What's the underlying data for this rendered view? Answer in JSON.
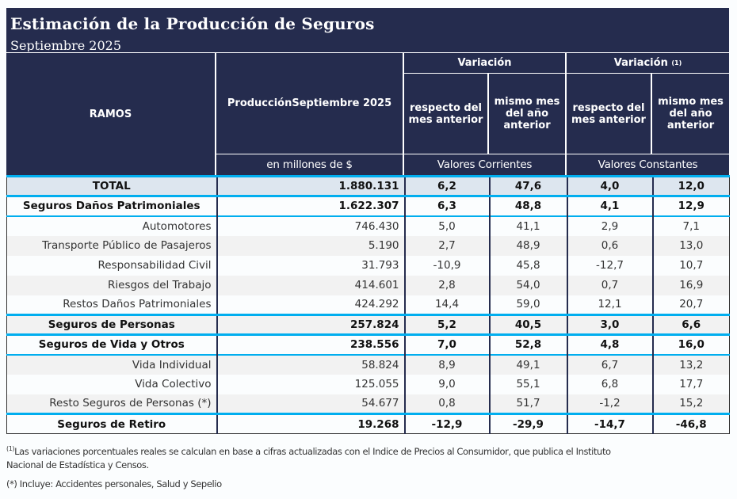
{
  "title": "Estimación de la Producción de Seguros",
  "subtitle": "Septiembre 2025",
  "header": {
    "ramos": "RAMOS",
    "produccion": "ProducciónSeptiembre 2025",
    "produccion_units": "en millones de $",
    "variacion": "Variación",
    "variacion_real": "Variación",
    "variacion_real_note": "(1)",
    "respecto": "respecto del mes anterior",
    "mismo_mes": "mismo mes del año anterior",
    "valores_corrientes": "Valores Corrientes",
    "valores_constantes": "Valores Constantes"
  },
  "rows": [
    {
      "name": "TOTAL",
      "prod": "1.880.131",
      "v1": "6,2",
      "v2": "47,6",
      "v3": "4,0",
      "v4": "12,0"
    },
    {
      "name": "Seguros Daños Patrimoniales",
      "prod": "1.622.307",
      "v1": "6,3",
      "v2": "48,8",
      "v3": "4,1",
      "v4": "12,9"
    },
    {
      "name": "Automotores",
      "prod": "746.430",
      "v1": "5,0",
      "v2": "41,1",
      "v3": "2,9",
      "v4": "7,1"
    },
    {
      "name": "Transporte Público de Pasajeros",
      "prod": "5.190",
      "v1": "2,7",
      "v2": "48,9",
      "v3": "0,6",
      "v4": "13,0"
    },
    {
      "name": "Responsabilidad Civil",
      "prod": "31.793",
      "v1": "-10,9",
      "v2": "45,8",
      "v3": "-12,7",
      "v4": "10,7"
    },
    {
      "name": "Riesgos del Trabajo",
      "prod": "414.601",
      "v1": "2,8",
      "v2": "54,0",
      "v3": "0,7",
      "v4": "16,9"
    },
    {
      "name": "Restos Daños Patrimoniales",
      "prod": "424.292",
      "v1": "14,4",
      "v2": "59,0",
      "v3": "12,1",
      "v4": "20,7"
    },
    {
      "name": "Seguros de Personas",
      "prod": "257.824",
      "v1": "5,2",
      "v2": "40,5",
      "v3": "3,0",
      "v4": "6,6"
    },
    {
      "name": "Seguros de Vida y Otros",
      "prod": "238.556",
      "v1": "7,0",
      "v2": "52,8",
      "v3": "4,8",
      "v4": "16,0"
    },
    {
      "name": "Vida Individual",
      "prod": "58.824",
      "v1": "8,9",
      "v2": "49,1",
      "v3": "6,7",
      "v4": "13,2"
    },
    {
      "name": "Vida Colectivo",
      "prod": "125.055",
      "v1": "9,0",
      "v2": "55,1",
      "v3": "6,8",
      "v4": "17,7"
    },
    {
      "name": "Resto Seguros de Personas (*)",
      "prod": "54.677",
      "v1": "0,8",
      "v2": "51,7",
      "v3": "-1,2",
      "v4": "15,2"
    },
    {
      "name": "Seguros de Retiro",
      "prod": "19.268",
      "v1": "-12,9",
      "v2": "-29,9",
      "v3": "-14,7",
      "v4": "-46,8"
    }
  ],
  "footnotes": {
    "note1_mark": "(1)",
    "note1_line1": "Las variaciones porcentuales reales se calculan en base a cifras actualizadas con  el Indice de Precios al Consumidor, que publica el Instituto",
    "note1_line2": "Nacional de Estadística y  Censos.",
    "note2": "(*) Incluye: Accidentes personales, Salud y Sepelio"
  },
  "colors": {
    "header_bg": "#252c4e",
    "accent_line": "#00aeef",
    "total_bg": "#dde6ef",
    "stripe": "#f2f2f2"
  }
}
